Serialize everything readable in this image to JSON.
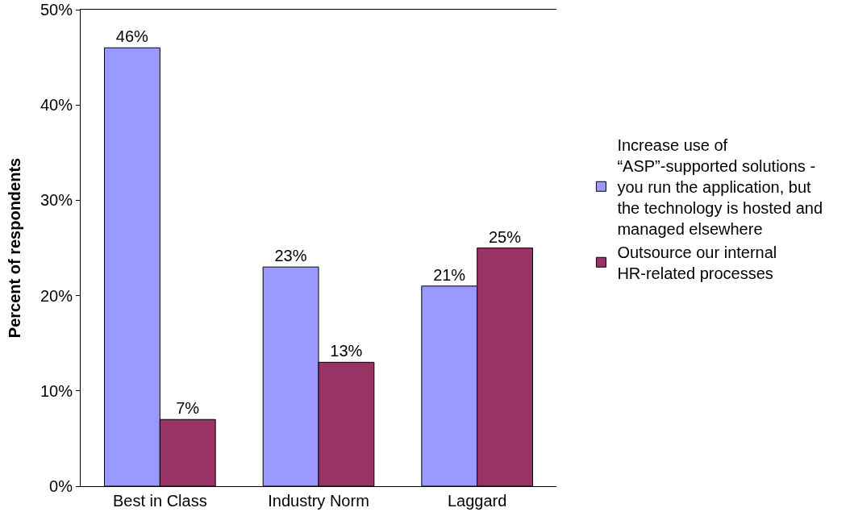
{
  "chart_data": {
    "type": "bar",
    "ylabel": "Percent of respondents",
    "categories": [
      "Best in Class",
      "Industry Norm",
      "Laggard"
    ],
    "series": [
      {
        "name": "Increase use of “ASP”-supported solutions - you run the application, but the technology is hosted and managed elsewhere",
        "color": "#9999ff",
        "values": [
          46,
          23,
          21
        ],
        "value_labels": [
          "46%",
          "23%",
          "21%"
        ]
      },
      {
        "name": "Outsource our internal HR-related processes",
        "color": "#993366",
        "values": [
          7,
          13,
          25
        ],
        "value_labels": [
          "7%",
          "13%",
          "25%"
        ]
      }
    ],
    "ylim": [
      0,
      50
    ],
    "yticks": [
      {
        "value": 0,
        "label": "0%"
      },
      {
        "value": 10,
        "label": "10%"
      },
      {
        "value": 20,
        "label": "20%"
      },
      {
        "value": 30,
        "label": "30%"
      },
      {
        "value": 40,
        "label": "40%"
      },
      {
        "value": 50,
        "label": "50%"
      }
    ],
    "grid": false,
    "legend": "right"
  }
}
